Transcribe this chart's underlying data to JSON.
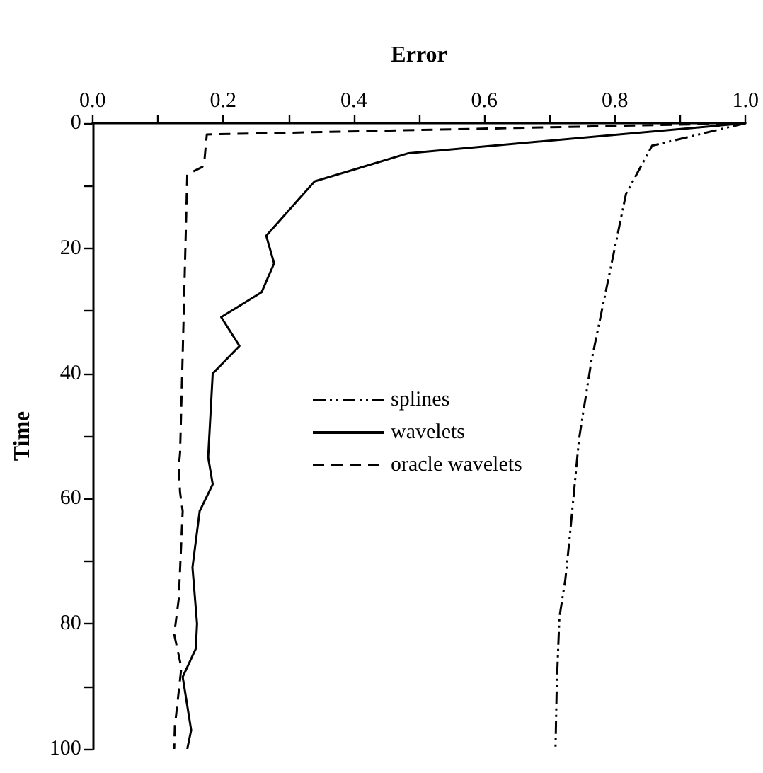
{
  "chart_data": {
    "type": "line",
    "xlabel": "Error",
    "ylabel": "Time",
    "xlim": [
      0,
      1
    ],
    "ylim": [
      100,
      0
    ],
    "xticks": [
      {
        "value": 0,
        "label": "0.0"
      },
      {
        "value": 0.1,
        "label": null
      },
      0.2,
      {
        "value": 0.3,
        "label": null
      },
      0.4,
      {
        "value": 0.5,
        "label": null
      },
      0.6,
      {
        "value": 0.7,
        "label": null
      },
      0.8,
      {
        "value": 0.9,
        "label": null
      },
      {
        "value": 1,
        "label": "1.0"
      }
    ],
    "yticks": [
      0,
      {
        "value": 10,
        "label": null
      },
      20,
      {
        "value": 30,
        "label": null
      },
      40,
      {
        "value": 50,
        "label": null
      },
      60,
      {
        "value": 70,
        "label": null
      },
      80,
      {
        "value": 90,
        "label": null
      },
      100
    ],
    "grid": false,
    "legend": "center",
    "marker": "none",
    "series": [
      {
        "name": "splines",
        "color": "#000000",
        "line_style": "dashdot",
        "values": [
          0,
          3.6,
          11.3,
          38,
          50.5,
          67,
          73,
          79,
          89.6,
          100
        ],
        "x": [
          1.0,
          0.857,
          0.817,
          0.764,
          0.745,
          0.73,
          0.724,
          0.715,
          0.711,
          0.709
        ]
      },
      {
        "name": "wavelets",
        "color": "#000000",
        "line_style": "solid",
        "values": [
          0,
          4.8,
          9.3,
          18,
          22.4,
          27,
          31,
          35.6,
          40,
          53.4,
          57.7,
          62,
          71,
          80,
          84,
          88.5,
          97,
          100
        ],
        "x": [
          1.0,
          0.484,
          0.34,
          0.266,
          0.278,
          0.259,
          0.197,
          0.225,
          0.184,
          0.177,
          0.184,
          0.164,
          0.153,
          0.16,
          0.158,
          0.138,
          0.151,
          0.145
        ]
      },
      {
        "name": "oracle wavelets",
        "color": "#000000",
        "line_style": "dashed",
        "values": [
          0,
          1.8,
          6.3,
          7,
          8.2,
          37,
          52.7,
          55,
          59,
          62,
          76,
          81.7,
          87,
          96.4,
          100
        ],
        "x": [
          1.0,
          0.175,
          0.171,
          0.168,
          0.145,
          0.138,
          0.134,
          0.132,
          0.134,
          0.138,
          0.132,
          0.125,
          0.136,
          0.126,
          0.125
        ]
      }
    ]
  }
}
